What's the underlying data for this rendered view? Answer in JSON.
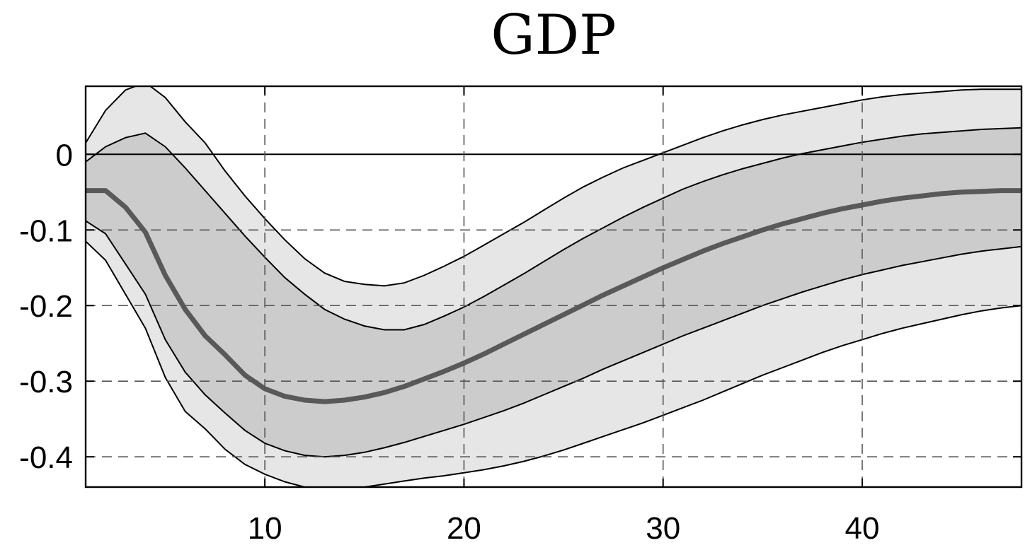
{
  "chart_data": {
    "type": "area",
    "title": "GDP",
    "xlabel": "",
    "ylabel": "",
    "xlim": [
      1,
      48
    ],
    "ylim": [
      -0.44,
      0.09
    ],
    "x_ticks": [
      10,
      20,
      30,
      40
    ],
    "x_tick_labels": [
      "10",
      "20",
      "30",
      "40"
    ],
    "y_ticks": [
      0,
      -0.1,
      -0.2,
      -0.3,
      -0.4
    ],
    "y_tick_labels": [
      "0",
      "-0.1",
      "-0.2",
      "-0.3",
      "-0.4"
    ],
    "grid": true,
    "zero_line": 0,
    "colors": {
      "outer_band": "#e6e6e6",
      "inner_band": "#cccccc",
      "median_line": "#595959",
      "band_edge": "#000000",
      "grid": "#555555"
    },
    "x": [
      1,
      2,
      3,
      4,
      5,
      6,
      7,
      8,
      9,
      10,
      11,
      12,
      13,
      14,
      15,
      16,
      17,
      18,
      19,
      20,
      21,
      22,
      23,
      24,
      25,
      26,
      27,
      28,
      29,
      30,
      31,
      32,
      33,
      34,
      35,
      36,
      37,
      38,
      39,
      40,
      41,
      42,
      43,
      44,
      45,
      46,
      47,
      48
    ],
    "series": [
      {
        "role": "outer_upper",
        "values": [
          0.015,
          0.058,
          0.085,
          0.095,
          0.075,
          0.043,
          0.015,
          -0.022,
          -0.055,
          -0.085,
          -0.113,
          -0.138,
          -0.157,
          -0.168,
          -0.172,
          -0.174,
          -0.17,
          -0.16,
          -0.148,
          -0.135,
          -0.12,
          -0.105,
          -0.09,
          -0.074,
          -0.058,
          -0.043,
          -0.03,
          -0.018,
          -0.008,
          0.002,
          0.012,
          0.022,
          0.031,
          0.039,
          0.046,
          0.052,
          0.057,
          0.062,
          0.067,
          0.072,
          0.076,
          0.079,
          0.081,
          0.083,
          0.085,
          0.086,
          0.086,
          0.086
        ]
      },
      {
        "role": "inner_upper",
        "values": [
          -0.01,
          0.01,
          0.022,
          0.028,
          0.01,
          -0.018,
          -0.048,
          -0.078,
          -0.108,
          -0.136,
          -0.163,
          -0.185,
          -0.205,
          -0.218,
          -0.227,
          -0.232,
          -0.232,
          -0.225,
          -0.214,
          -0.202,
          -0.188,
          -0.173,
          -0.158,
          -0.142,
          -0.126,
          -0.111,
          -0.097,
          -0.083,
          -0.07,
          -0.058,
          -0.046,
          -0.036,
          -0.027,
          -0.019,
          -0.012,
          -0.005,
          0.001,
          0.006,
          0.011,
          0.016,
          0.02,
          0.024,
          0.027,
          0.029,
          0.031,
          0.033,
          0.034,
          0.035
        ]
      },
      {
        "role": "median",
        "values": [
          -0.048,
          -0.048,
          -0.07,
          -0.103,
          -0.16,
          -0.205,
          -0.24,
          -0.265,
          -0.292,
          -0.31,
          -0.32,
          -0.325,
          -0.327,
          -0.325,
          -0.321,
          -0.315,
          -0.307,
          -0.297,
          -0.287,
          -0.276,
          -0.264,
          -0.251,
          -0.238,
          -0.225,
          -0.212,
          -0.199,
          -0.186,
          -0.174,
          -0.162,
          -0.15,
          -0.139,
          -0.128,
          -0.118,
          -0.109,
          -0.1,
          -0.092,
          -0.085,
          -0.078,
          -0.072,
          -0.067,
          -0.062,
          -0.058,
          -0.055,
          -0.052,
          -0.05,
          -0.049,
          -0.048,
          -0.048
        ]
      },
      {
        "role": "inner_lower",
        "values": [
          -0.088,
          -0.105,
          -0.145,
          -0.185,
          -0.245,
          -0.288,
          -0.318,
          -0.342,
          -0.365,
          -0.382,
          -0.392,
          -0.398,
          -0.4,
          -0.398,
          -0.394,
          -0.388,
          -0.381,
          -0.373,
          -0.365,
          -0.357,
          -0.348,
          -0.339,
          -0.329,
          -0.318,
          -0.307,
          -0.296,
          -0.284,
          -0.273,
          -0.262,
          -0.251,
          -0.24,
          -0.23,
          -0.22,
          -0.21,
          -0.2,
          -0.191,
          -0.182,
          -0.174,
          -0.166,
          -0.159,
          -0.153,
          -0.147,
          -0.142,
          -0.137,
          -0.132,
          -0.128,
          -0.125,
          -0.122
        ]
      },
      {
        "role": "outer_lower",
        "values": [
          -0.115,
          -0.14,
          -0.185,
          -0.23,
          -0.295,
          -0.34,
          -0.363,
          -0.39,
          -0.41,
          -0.423,
          -0.433,
          -0.44,
          -0.444,
          -0.443,
          -0.44,
          -0.436,
          -0.432,
          -0.428,
          -0.425,
          -0.421,
          -0.417,
          -0.412,
          -0.406,
          -0.399,
          -0.391,
          -0.382,
          -0.373,
          -0.364,
          -0.355,
          -0.345,
          -0.335,
          -0.325,
          -0.314,
          -0.303,
          -0.292,
          -0.282,
          -0.272,
          -0.262,
          -0.253,
          -0.245,
          -0.237,
          -0.23,
          -0.224,
          -0.218,
          -0.212,
          -0.207,
          -0.203,
          -0.2
        ]
      }
    ]
  }
}
